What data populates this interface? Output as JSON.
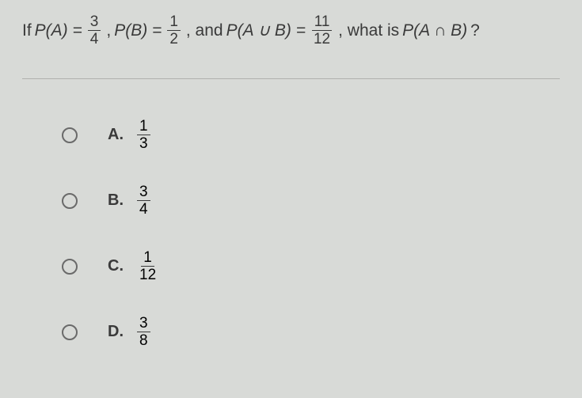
{
  "question": {
    "prefix": "If ",
    "pA_label": "P(A) = ",
    "pA_num": "3",
    "pA_den": "4",
    "sep1": ", ",
    "pB_label": "P(B) = ",
    "pB_num": "1",
    "pB_den": "2",
    "sep2": ", and ",
    "pAuB_label": "P(A ∪ B) = ",
    "pAuB_num": "11",
    "pAuB_den": "12",
    "sep3": ", what is ",
    "pAnB_label": "P(A ∩ B)",
    "suffix": " ?"
  },
  "options": [
    {
      "letter": "A.",
      "num": "1",
      "den": "3"
    },
    {
      "letter": "B.",
      "num": "3",
      "den": "4"
    },
    {
      "letter": "C.",
      "num": "1",
      "den": "12"
    },
    {
      "letter": "D.",
      "num": "3",
      "den": "8"
    }
  ],
  "colors": {
    "background": "#d8dad7",
    "text": "#3a3a3a",
    "radio_border": "#6a6a6a",
    "divider": "#b0b0ae"
  },
  "typography": {
    "question_fontsize": 21,
    "fraction_fontsize": 19,
    "option_label_fontsize": 20
  }
}
